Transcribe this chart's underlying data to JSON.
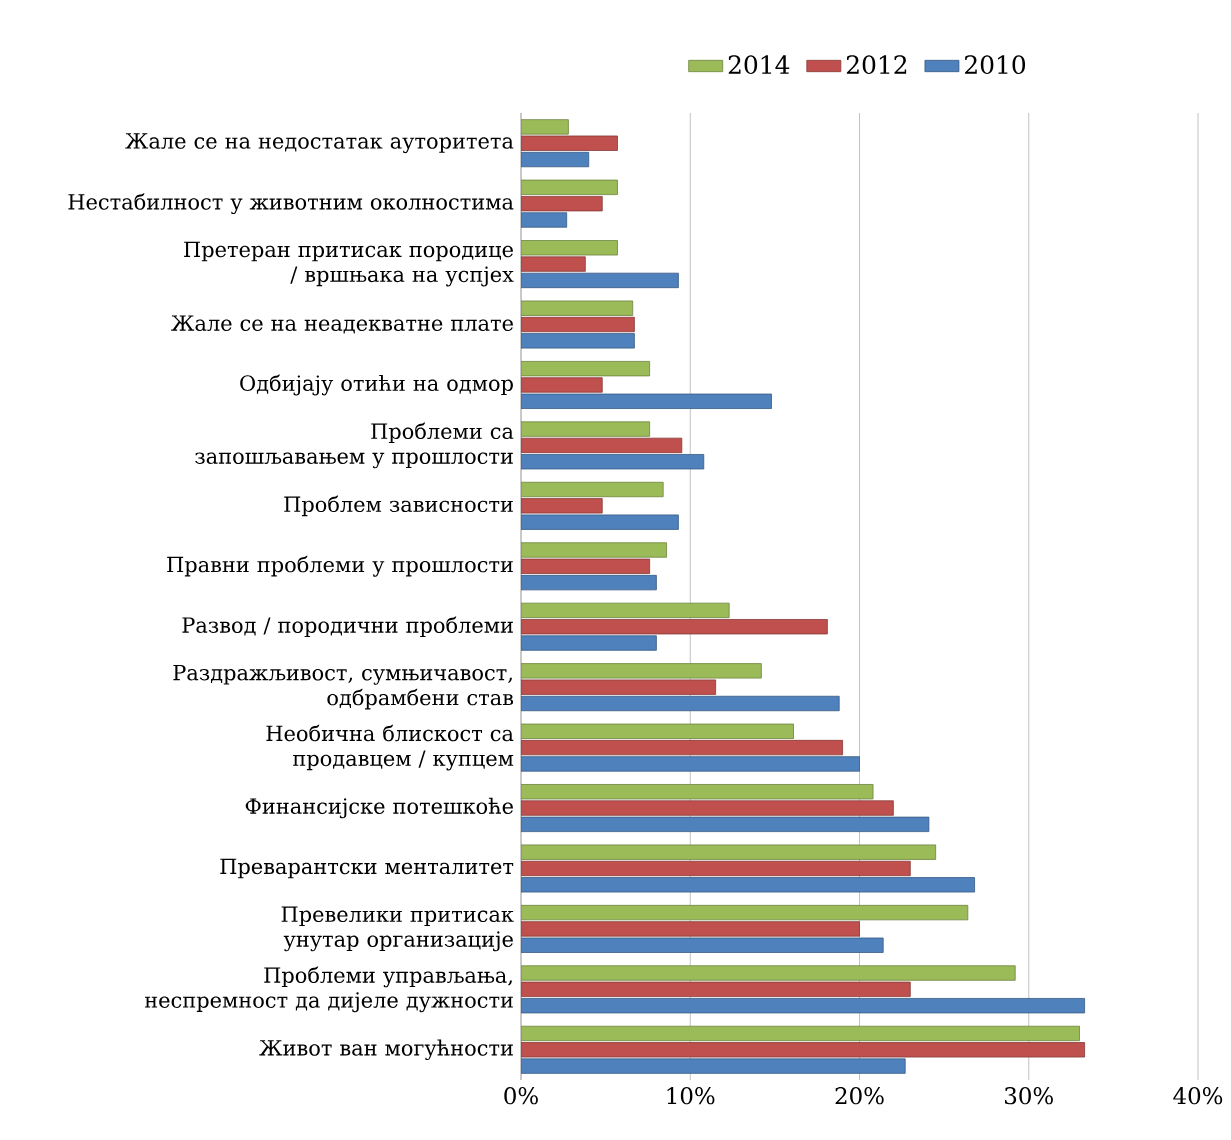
{
  "chart_data": {
    "type": "bar",
    "orientation": "horizontal",
    "categories": [
      "Жале се на недостатак ауторитета",
      "Нестабилност у животним околностима",
      "Претеран притисак породице / вршњака на успјех",
      "Жале се на неадекватне плате",
      "Одбијају отићи на одмор",
      "Проблеми са запошљавањем у прошлости",
      "Проблем зависности",
      "Правни проблеми у прошлости",
      "Развод / породични проблеми",
      "Раздражљивост, сумњичавост, одбрамбени став",
      "Необична блискост са продавцем / купцем",
      "Финансијске потешкоће",
      "Преварантски менталитет",
      "Превелики притисак унутар организације",
      "Проблеми управљања, неспремност да дијеле  дужности",
      "Живот ван могућности"
    ],
    "series": [
      {
        "name": "2014",
        "color": "#9bbb59",
        "values": [
          2.8,
          5.7,
          5.7,
          6.6,
          7.6,
          7.6,
          8.4,
          8.6,
          12.3,
          14.2,
          16.1,
          20.8,
          24.5,
          26.4,
          29.2,
          33.0
        ]
      },
      {
        "name": "2012",
        "color": "#c0504d",
        "values": [
          5.7,
          4.8,
          3.8,
          6.7,
          4.8,
          9.5,
          4.8,
          7.6,
          18.1,
          11.5,
          19.0,
          22.0,
          23.0,
          20.0,
          23.0,
          33.3
        ]
      },
      {
        "name": "2010",
        "color": "#4f81bd",
        "values": [
          4.0,
          2.7,
          9.3,
          6.7,
          14.8,
          10.8,
          9.3,
          8.0,
          8.0,
          18.8,
          20.0,
          24.1,
          26.8,
          21.4,
          33.3,
          22.7
        ]
      }
    ],
    "xlim": [
      0,
      40
    ],
    "xticks": [
      {
        "value": 0,
        "label": "0%"
      },
      {
        "value": 10,
        "label": "10%"
      },
      {
        "value": 20,
        "label": "20%"
      },
      {
        "value": 30,
        "label": "30%"
      },
      {
        "value": 40,
        "label": "40%"
      }
    ],
    "grid": "x",
    "legend": "top"
  }
}
